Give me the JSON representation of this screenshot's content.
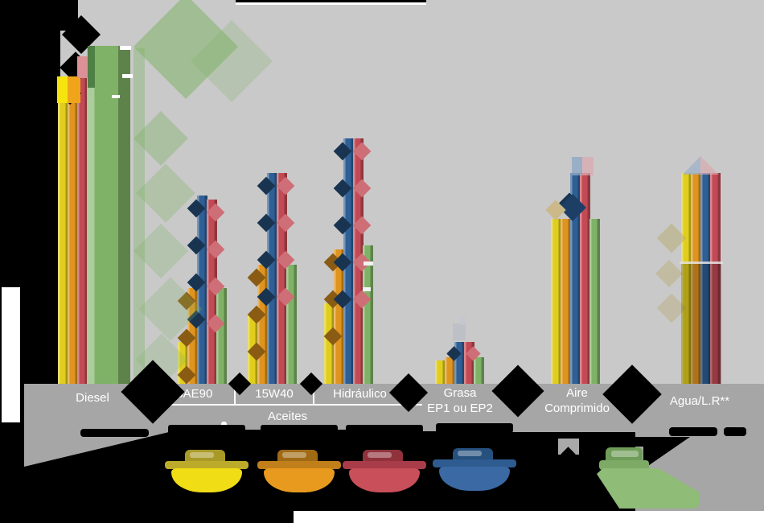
{
  "chart_data": {
    "type": "bar",
    "categories": [
      "Diesel",
      "SAE90",
      "15W40",
      "Hidráulico",
      "Grasa EP1 ou EP2",
      "Aire Comprimido",
      "Agua/L.R**"
    ],
    "category_group_label": "Aceites",
    "category_group_members": [
      "SAE90",
      "15W40",
      "Hidráulico"
    ],
    "series": [
      {
        "name": "yellow",
        "color": "#e0cd1e",
        "values": [
          80,
          11,
          18,
          21,
          6,
          43,
          55
        ]
      },
      {
        "name": "orange",
        "color": "#df941f",
        "values": [
          80,
          25,
          31,
          35,
          7,
          43,
          55
        ]
      },
      {
        "name": "blue",
        "color": "#2e5f95",
        "values": [
          0,
          49,
          55,
          64,
          11,
          55,
          55
        ]
      },
      {
        "name": "red",
        "color": "#c24a55",
        "values": [
          85,
          48,
          55,
          64,
          11,
          55,
          55
        ]
      },
      {
        "name": "green",
        "color": "#7fb266",
        "values": [
          88,
          25,
          31,
          36,
          7,
          43,
          0
        ]
      }
    ],
    "ylim": [
      0,
      100
    ],
    "grid": false,
    "legend_position": "bottom",
    "note": "Y-axis tick labels and legend text are rendered in black over a transparent (black) background and are not legible; series values are estimated relative bar heights on a 0-100 scale."
  },
  "band": {
    "cells": [
      {
        "lines": [
          "Diesel"
        ]
      },
      {
        "lines": [
          "SAE90"
        ]
      },
      {
        "lines": [
          "15W40"
        ]
      },
      {
        "lines": [
          "Hidráulico"
        ]
      },
      {
        "lines": [
          "Grasa",
          "EP1 ou EP2"
        ]
      },
      {
        "lines": [
          "Aire",
          "Comprimido"
        ]
      },
      {
        "lines": [
          "Agua/L.R**"
        ]
      }
    ],
    "aceites_label": "Aceites"
  },
  "legend": {
    "items": [
      {
        "name": "yellow",
        "label": "",
        "dome": "#f0dd16",
        "cap": "#a99a28",
        "brim": "#bcab2b"
      },
      {
        "name": "orange",
        "label": "",
        "dome": "#e79a1e",
        "cap": "#a06a15",
        "brim": "#c07f1a"
      },
      {
        "name": "red",
        "label": "",
        "dome": "#c94f5a",
        "cap": "#8f323c",
        "brim": "#a83c48"
      },
      {
        "name": "blue",
        "label": "",
        "dome": "#3a69a3",
        "cap": "#26507d",
        "brim": "#2e5b90"
      },
      {
        "name": "green",
        "label": "",
        "dome": "#8fbc77",
        "cap": "#6f9c58",
        "brim": "#7dab65"
      }
    ]
  },
  "colors": {
    "background": "#000000",
    "plot_bg": "#c9c9c9",
    "band": "#a6a6a6"
  }
}
